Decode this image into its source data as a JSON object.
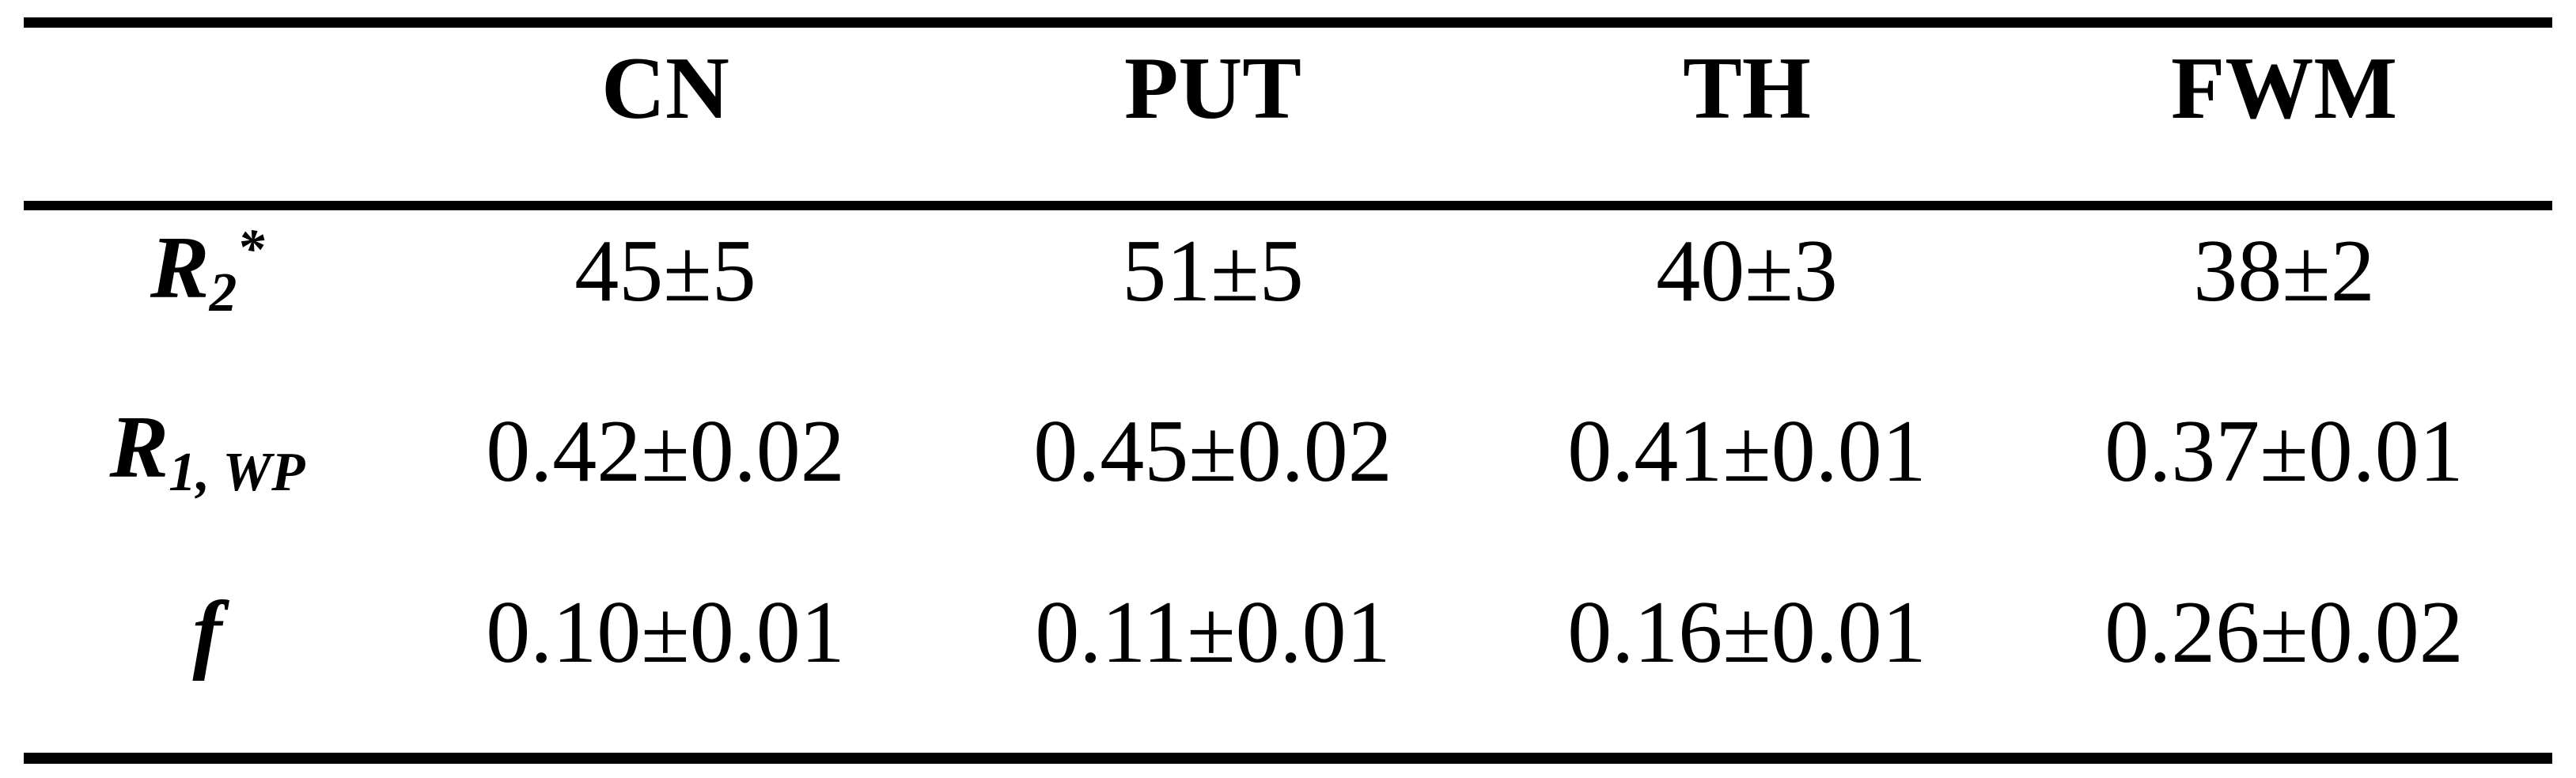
{
  "table": {
    "columns": [
      "CN",
      "PUT",
      "TH",
      "FWM"
    ],
    "rows": [
      {
        "label": {
          "base": "R",
          "sub": "2",
          "sup": "*"
        },
        "cells": [
          "45±5",
          "51±5",
          "40±3",
          "38±2"
        ]
      },
      {
        "label": {
          "base": "R",
          "sub": "1, WP"
        },
        "cells": [
          "0.42±0.02",
          "0.45±0.02",
          "0.41±0.01",
          "0.37±0.01"
        ]
      },
      {
        "label": {
          "base": "f"
        },
        "cells": [
          "0.10±0.01",
          "0.11±0.01",
          "0.16±0.01",
          "0.26±0.02"
        ]
      }
    ]
  }
}
